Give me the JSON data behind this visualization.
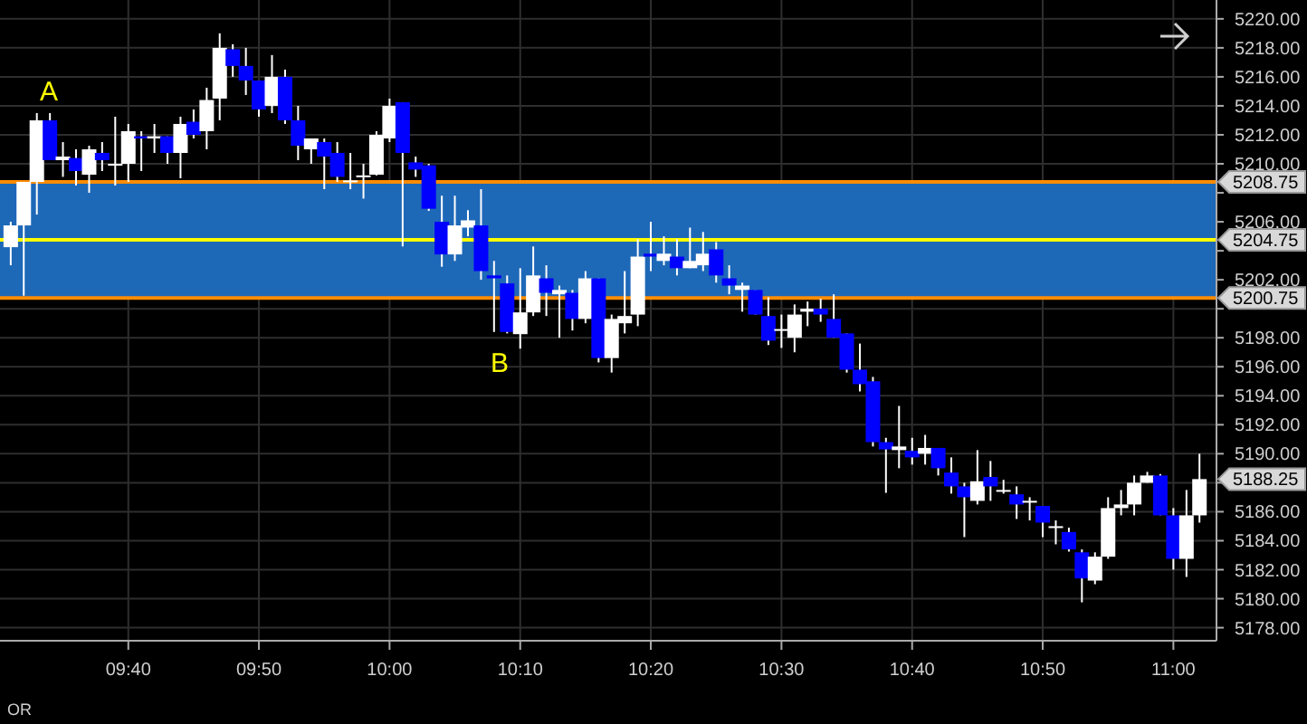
{
  "chart_data": {
    "type": "candlestick",
    "x": [
      9.5167,
      9.5333,
      9.55,
      9.5667,
      9.5833,
      9.6,
      9.6167,
      9.6333,
      9.65,
      9.6667,
      9.6833,
      9.7,
      9.7167,
      9.7333,
      9.75,
      9.7667,
      9.7833,
      9.8,
      9.8167,
      9.8333,
      9.85,
      9.8667,
      9.8833,
      9.9,
      9.9167,
      9.9333,
      9.95,
      9.9667,
      9.9833,
      10,
      10.0167,
      10.0333,
      10.05,
      10.0667,
      10.0833,
      10.1,
      10.1167,
      10.1333,
      10.15,
      10.1667,
      10.1833,
      10.2,
      10.2167,
      10.2333,
      10.25,
      10.2667,
      10.2833,
      10.3,
      10.3167,
      10.3333,
      10.35,
      10.3667,
      10.3833,
      10.4,
      10.4167,
      10.4333,
      10.45,
      10.4667,
      10.4833,
      10.5,
      10.5167,
      10.5333,
      10.55,
      10.5667,
      10.5833,
      10.6,
      10.6167,
      10.6333,
      10.65,
      10.6667,
      10.6833,
      10.7,
      10.7167,
      10.7333,
      10.75,
      10.7667,
      10.7833,
      10.8,
      10.8167,
      10.8333,
      10.85,
      10.8667,
      10.8833,
      10.9,
      10.9167,
      10.9333,
      10.95,
      10.9667,
      10.9833,
      11,
      11.0167,
      11.0333
    ],
    "ohlc": [
      [
        5204.25,
        5206,
        5203,
        5205.75
      ],
      [
        5205.75,
        5208.75,
        5200.9,
        5208.75
      ],
      [
        5208.75,
        5213.5,
        5206.5,
        5213
      ],
      [
        5213,
        5213.5,
        5210.25,
        5210.25
      ],
      [
        5210.25,
        5211.5,
        5209.1,
        5210.5
      ],
      [
        5210.4,
        5211,
        5208.5,
        5209.5
      ],
      [
        5209.25,
        5211.25,
        5208,
        5211
      ],
      [
        5210.75,
        5211.5,
        5209.5,
        5210.25
      ],
      [
        5210,
        5213.25,
        5208.5,
        5210
      ],
      [
        5210,
        5212.75,
        5208.75,
        5212.25
      ],
      [
        5211.9,
        5212.25,
        5209.5,
        5211.75
      ],
      [
        5211.75,
        5212.75,
        5210.75,
        5211.9
      ],
      [
        5211.9,
        5211.9,
        5210,
        5210.75
      ],
      [
        5210.75,
        5213.25,
        5209,
        5212.75
      ],
      [
        5212.9,
        5213.75,
        5211.75,
        5212
      ],
      [
        5212.25,
        5215.25,
        5211,
        5214.4
      ],
      [
        5214.5,
        5219,
        5213,
        5218
      ],
      [
        5217.9,
        5218.25,
        5216,
        5216.75
      ],
      [
        5216.75,
        5218,
        5214.75,
        5215.75
      ],
      [
        5215.75,
        5215.75,
        5213.25,
        5213.75
      ],
      [
        5214,
        5217.5,
        5213.5,
        5216
      ],
      [
        5216,
        5216.5,
        5212.75,
        5213
      ],
      [
        5213,
        5214,
        5210.25,
        5211.25
      ],
      [
        5211,
        5211.75,
        5210,
        5211.75
      ],
      [
        5211.5,
        5211.75,
        5208.25,
        5210.5
      ],
      [
        5210.75,
        5211.5,
        5208.75,
        5209.1
      ],
      [
        5208.85,
        5210.75,
        5208.25,
        5208.85
      ],
      [
        5209.2,
        5210,
        5207.6,
        5209.2
      ],
      [
        5209.25,
        5212.25,
        5209.2,
        5212
      ],
      [
        5211.75,
        5214.5,
        5211.5,
        5214
      ],
      [
        5214.25,
        5214.25,
        5204.3,
        5210.75
      ],
      [
        5210.1,
        5210.5,
        5209.1,
        5209.6
      ],
      [
        5209.9,
        5210,
        5206.75,
        5206.9
      ],
      [
        5206,
        5207.8,
        5202.9,
        5203.75
      ],
      [
        5203.75,
        5207.8,
        5203.3,
        5205.75
      ],
      [
        5205.6,
        5206.8,
        5205,
        5206.1
      ],
      [
        5205.75,
        5208.25,
        5202,
        5202.6
      ],
      [
        5202.3,
        5203.3,
        5198.4,
        5202.1
      ],
      [
        5201.75,
        5202.3,
        5198.3,
        5198.4
      ],
      [
        5198.25,
        5202.8,
        5197.25,
        5199.75
      ],
      [
        5199.75,
        5204.3,
        5199.5,
        5202.3
      ],
      [
        5202.1,
        5203,
        5199.5,
        5201.1
      ],
      [
        5201,
        5201.6,
        5198,
        5201.3
      ],
      [
        5201.1,
        5201.3,
        5198.5,
        5199.3
      ],
      [
        5199.3,
        5202.6,
        5199,
        5202.1
      ],
      [
        5202.1,
        5202.1,
        5196.3,
        5196.6
      ],
      [
        5196.6,
        5199.6,
        5195.6,
        5199.3
      ],
      [
        5199,
        5202.6,
        5198.3,
        5199.5
      ],
      [
        5199.6,
        5204.8,
        5198.8,
        5203.6
      ],
      [
        5203.8,
        5206,
        5202.6,
        5203.6
      ],
      [
        5203.3,
        5205,
        5203,
        5203.8
      ],
      [
        5203.6,
        5204.8,
        5202.3,
        5202.8
      ],
      [
        5202.8,
        5205.6,
        5202.8,
        5203.3
      ],
      [
        5203,
        5205.3,
        5202.6,
        5203.8
      ],
      [
        5204.1,
        5204.6,
        5201.8,
        5202.3
      ],
      [
        5202.1,
        5203,
        5201,
        5201.6
      ],
      [
        5201.3,
        5201.8,
        5199.8,
        5201.6
      ],
      [
        5201.3,
        5201.3,
        5199.6,
        5199.6
      ],
      [
        5199.5,
        5200.8,
        5197.5,
        5197.8
      ],
      [
        5198.6,
        5199.6,
        5197.3,
        5198.6
      ],
      [
        5198,
        5200.3,
        5197,
        5199.6
      ],
      [
        5199.8,
        5200.5,
        5198.8,
        5200
      ],
      [
        5200,
        5200.7,
        5199.1,
        5199.6
      ],
      [
        5199.3,
        5201,
        5198,
        5198
      ],
      [
        5198.3,
        5198.3,
        5195.6,
        5195.8
      ],
      [
        5195.8,
        5197.6,
        5194.3,
        5194.8
      ],
      [
        5195,
        5195.3,
        5190.5,
        5190.8
      ],
      [
        5190.8,
        5191.1,
        5187.3,
        5190.3
      ],
      [
        5190.25,
        5193.3,
        5189,
        5190.5
      ],
      [
        5190.2,
        5191.1,
        5189.25,
        5189.75
      ],
      [
        5190,
        5191.3,
        5189.25,
        5190.4
      ],
      [
        5190.4,
        5190.4,
        5188.5,
        5189
      ],
      [
        5188.7,
        5189.75,
        5187.25,
        5187.75
      ],
      [
        5187.75,
        5188,
        5184.25,
        5187
      ],
      [
        5186.75,
        5190.25,
        5186.5,
        5188.1
      ],
      [
        5188.4,
        5189.5,
        5186.75,
        5187.75
      ],
      [
        5187.5,
        5188.2,
        5187.25,
        5187.5
      ],
      [
        5187.2,
        5187.75,
        5185.5,
        5186.5
      ],
      [
        5186.75,
        5187,
        5185.4,
        5186.75
      ],
      [
        5186.4,
        5186.4,
        5184.25,
        5185.25
      ],
      [
        5185,
        5185.4,
        5183.75,
        5185
      ],
      [
        5184.6,
        5184.9,
        5183.25,
        5183.4
      ],
      [
        5183.2,
        5183.4,
        5179.75,
        5181.4
      ],
      [
        5181.25,
        5183.2,
        5181,
        5182.9
      ],
      [
        5182.9,
        5187,
        5182.75,
        5186.25
      ],
      [
        5186.25,
        5187.5,
        5185.75,
        5186.5
      ],
      [
        5186.5,
        5188.5,
        5185.75,
        5188
      ],
      [
        5188,
        5188.75,
        5188,
        5188.5
      ],
      [
        5188.5,
        5188.6,
        5185.75,
        5185.75
      ],
      [
        5185.75,
        5186.25,
        5182,
        5182.75
      ],
      [
        5182.75,
        5187.5,
        5181.5,
        5185.75
      ],
      [
        5185.75,
        5190,
        5185.25,
        5188.25
      ]
    ],
    "colors": [
      "#ffffff",
      "#ffffff",
      "#ffffff",
      "#0000ff",
      "#ffffff",
      "#0000ff",
      "#ffffff",
      "#0000ff",
      "#ffffff",
      "#ffffff",
      "#0000ff",
      "#ffffff",
      "#0000ff",
      "#ffffff",
      "#0000ff",
      "#ffffff",
      "#ffffff",
      "#0000ff",
      "#0000ff",
      "#0000ff",
      "#ffffff",
      "#0000ff",
      "#0000ff",
      "#ffffff",
      "#0000ff",
      "#0000ff",
      "#ffffff",
      "#ffffff",
      "#ffffff",
      "#ffffff",
      "#0000ff",
      "#0000ff",
      "#0000ff",
      "#0000ff",
      "#ffffff",
      "#ffffff",
      "#0000ff",
      "#0000ff",
      "#0000ff",
      "#ffffff",
      "#ffffff",
      "#0000ff",
      "#ffffff",
      "#0000ff",
      "#ffffff",
      "#0000ff",
      "#ffffff",
      "#ffffff",
      "#ffffff",
      "#0000ff",
      "#ffffff",
      "#0000ff",
      "#ffffff",
      "#ffffff",
      "#0000ff",
      "#0000ff",
      "#ffffff",
      "#0000ff",
      "#0000ff",
      "#ffffff",
      "#ffffff",
      "#ffffff",
      "#0000ff",
      "#0000ff",
      "#0000ff",
      "#0000ff",
      "#0000ff",
      "#0000ff",
      "#ffffff",
      "#0000ff",
      "#ffffff",
      "#0000ff",
      "#0000ff",
      "#0000ff",
      "#ffffff",
      "#0000ff",
      "#ffffff",
      "#0000ff",
      "#ffffff",
      "#0000ff",
      "#ffffff",
      "#0000ff",
      "#0000ff",
      "#ffffff",
      "#ffffff",
      "#ffffff",
      "#ffffff",
      "#ffffff",
      "#0000ff",
      "#0000ff",
      "#ffffff",
      "#ffffff"
    ],
    "xlim": [
      9.503,
      11.055
    ],
    "xticks": [
      {
        "value": 9.6667,
        "label": "09:40"
      },
      {
        "value": 9.8333,
        "label": "09:50"
      },
      {
        "value": 10,
        "label": "10:00"
      },
      {
        "value": 10.1667,
        "label": "10:10"
      },
      {
        "value": 10.3333,
        "label": "10:20"
      },
      {
        "value": 10.5,
        "label": "10:30"
      },
      {
        "value": 10.6667,
        "label": "10:40"
      },
      {
        "value": 10.8333,
        "label": "10:50"
      },
      {
        "value": 11,
        "label": "11:00"
      }
    ],
    "ylim": [
      5177.1,
      5221.3
    ],
    "yticks": [
      {
        "value": 5178,
        "label": "5178.00"
      },
      {
        "value": 5180,
        "label": "5180.00"
      },
      {
        "value": 5182,
        "label": "5182.00"
      },
      {
        "value": 5184,
        "label": "5184.00"
      },
      {
        "value": 5186,
        "label": "5186.00"
      },
      {
        "value": 5188,
        "label": null
      },
      {
        "value": 5190,
        "label": "5190.00"
      },
      {
        "value": 5192,
        "label": "5192.00"
      },
      {
        "value": 5194,
        "label": "5194.00"
      },
      {
        "value": 5196,
        "label": "5196.00"
      },
      {
        "value": 5198,
        "label": "5198.00"
      },
      {
        "value": 5200,
        "label": null
      },
      {
        "value": 5202,
        "label": "5202.00"
      },
      {
        "value": 5204,
        "label": null
      },
      {
        "value": 5206,
        "label": "5206.00"
      },
      {
        "value": 5208,
        "label": null
      },
      {
        "value": 5210,
        "label": "5210.00"
      },
      {
        "value": 5212,
        "label": "5212.00"
      },
      {
        "value": 5214,
        "label": "5214.00"
      },
      {
        "value": 5216,
        "label": "5216.00"
      },
      {
        "value": 5218,
        "label": "5218.00"
      },
      {
        "value": 5220,
        "label": "5220.00"
      }
    ],
    "grid": true,
    "bands": [
      {
        "axis": "y",
        "from": 5200.75,
        "to": 5208.75,
        "color": "#1e68b8"
      }
    ],
    "ref_lines": [
      {
        "axis": "y",
        "value": 5208.75,
        "label": "5208.75",
        "color": "#ff8c00"
      },
      {
        "axis": "y",
        "value": 5204.75,
        "label": "5204.75",
        "color": "#ffff00"
      },
      {
        "axis": "y",
        "value": 5200.75,
        "label": "5200.75",
        "color": "#ff8c00"
      }
    ],
    "annotations": [
      "A",
      "B",
      "5188.25",
      "OR"
    ]
  }
}
